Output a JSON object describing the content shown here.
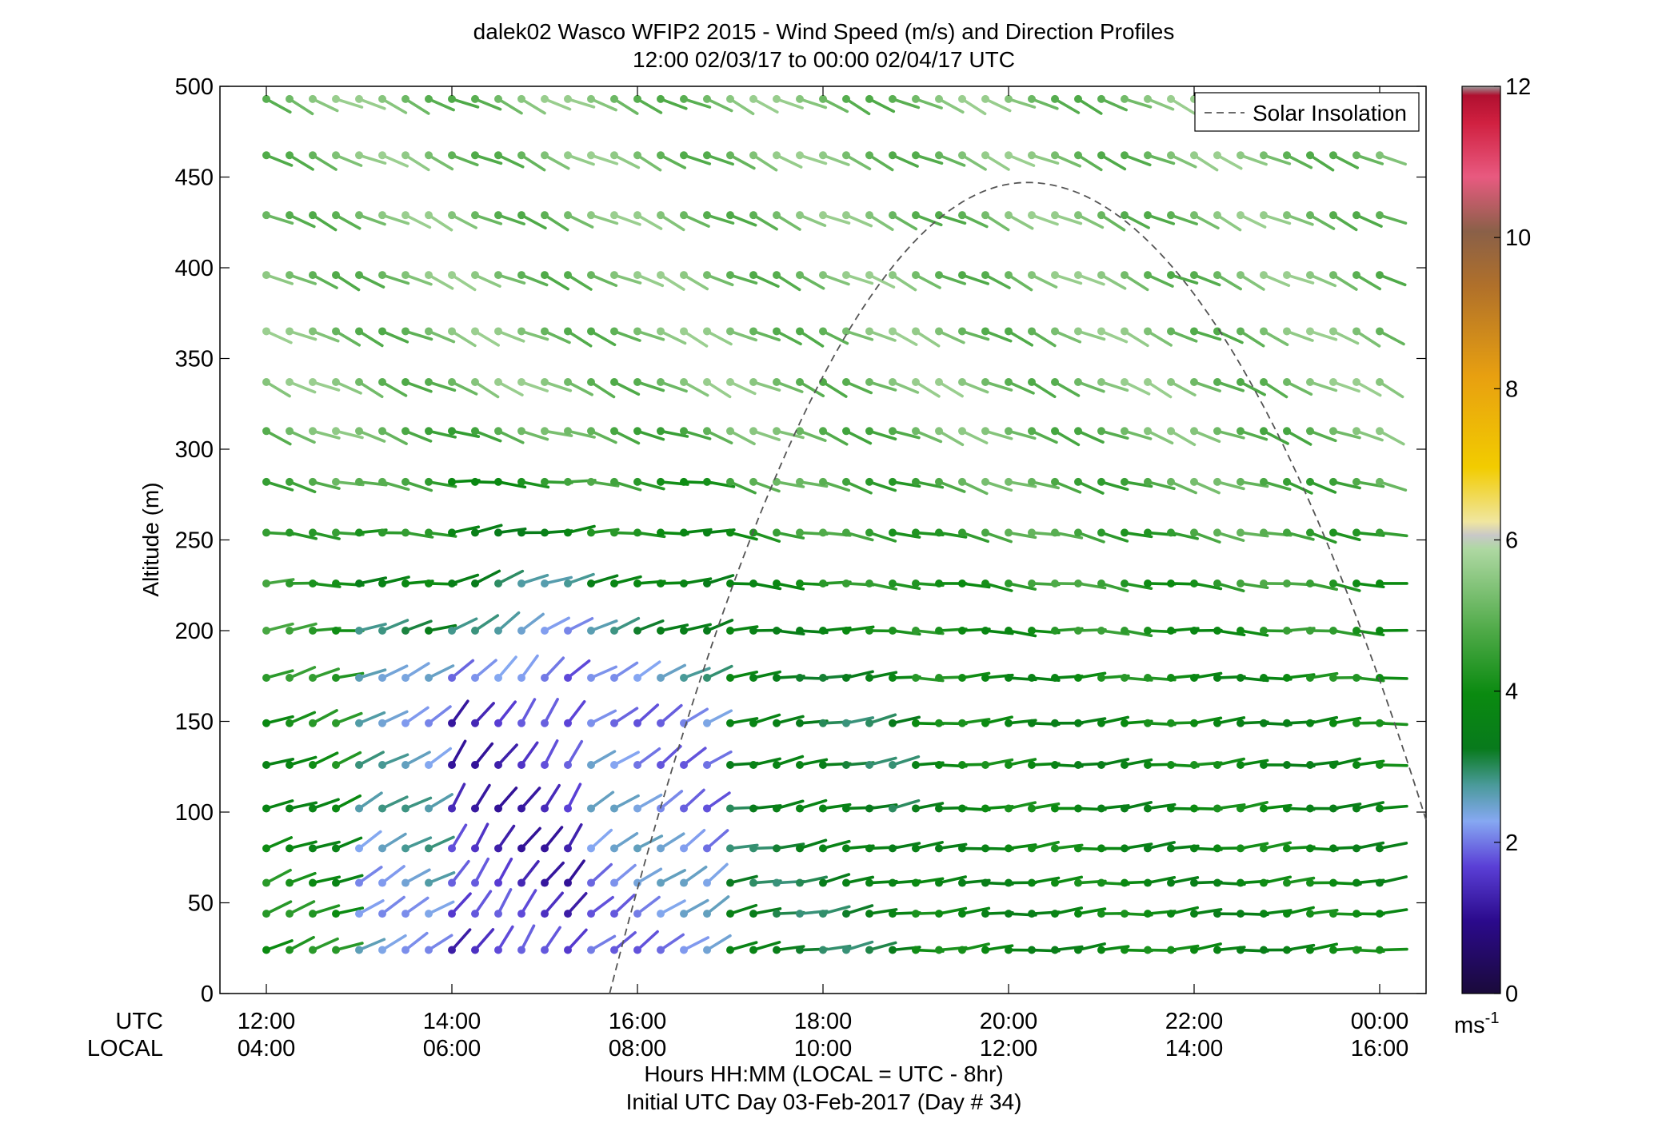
{
  "chart_data": {
    "type": "wind-barb-profile",
    "title": "dalek02 Wasco WFIP2 2015 - Wind Speed (m/s) and Direction Profiles",
    "subtitle": "12:00 02/03/17 to 00:00 02/04/17  UTC",
    "ylabel": "Altitude (m)",
    "xlabel": "Hours HH:MM  (LOCAL = UTC - 8hr)",
    "footer": "Initial UTC Day 03-Feb-2017 (Day # 34)",
    "row_label_utc": "UTC",
    "row_label_local": "LOCAL",
    "x_range_hours": [
      11.5,
      24.5
    ],
    "y_range": [
      0,
      500
    ],
    "y_ticks": [
      "0",
      "50",
      "100",
      "150",
      "200",
      "250",
      "300",
      "350",
      "400",
      "450",
      "500"
    ],
    "x_ticks_utc": [
      "12:00",
      "14:00",
      "16:00",
      "18:00",
      "20:00",
      "22:00",
      "00:00"
    ],
    "x_ticks_local": [
      "04:00",
      "06:00",
      "08:00",
      "10:00",
      "12:00",
      "14:00",
      "16:00"
    ],
    "legend": {
      "label": "Solar Insolation",
      "placement": "top-right"
    },
    "colorbar": {
      "range": [
        0,
        12
      ],
      "ticks": [
        "0",
        "2",
        "4",
        "6",
        "8",
        "10",
        "12"
      ],
      "unit": "ms",
      "unit_exp": "-1"
    },
    "altitudes": [
      24,
      44,
      61,
      80,
      102,
      126,
      149,
      174,
      200,
      226,
      254,
      282,
      310,
      337,
      365,
      396,
      429,
      462,
      493
    ],
    "solar_insolation": {
      "start_hour": 15.7,
      "end_hour": 24.5,
      "peak_hour": 20.2,
      "peak_altitude": 447
    },
    "regions": [
      {
        "from_hour": 12.0,
        "to_hour": 13.0,
        "speed": 4.0,
        "heading": 20,
        "applies_to": "low"
      },
      {
        "from_hour": 13.0,
        "to_hour": 14.0,
        "speed": 2.5,
        "heading": 30,
        "applies_to": "low"
      },
      {
        "from_hour": 14.0,
        "to_hour": 15.5,
        "speed": 1.5,
        "heading": 55,
        "applies_to": "low"
      },
      {
        "from_hour": 15.5,
        "to_hour": 17.0,
        "speed": 2.2,
        "heading": 35,
        "applies_to": "low"
      },
      {
        "from_hour": 17.0,
        "to_hour": 19.0,
        "speed": 3.3,
        "heading": 10,
        "applies_to": "low"
      },
      {
        "from_hour": 19.0,
        "to_hour": 24.0,
        "speed": 3.8,
        "heading": 5,
        "applies_to": "low"
      },
      {
        "from_hour": 12.0,
        "to_hour": 24.0,
        "speed": 5.2,
        "heading": -25,
        "applies_to": "upper"
      }
    ],
    "series": [
      {
        "name": "Solar Insolation",
        "type": "dashed-curve"
      }
    ]
  }
}
